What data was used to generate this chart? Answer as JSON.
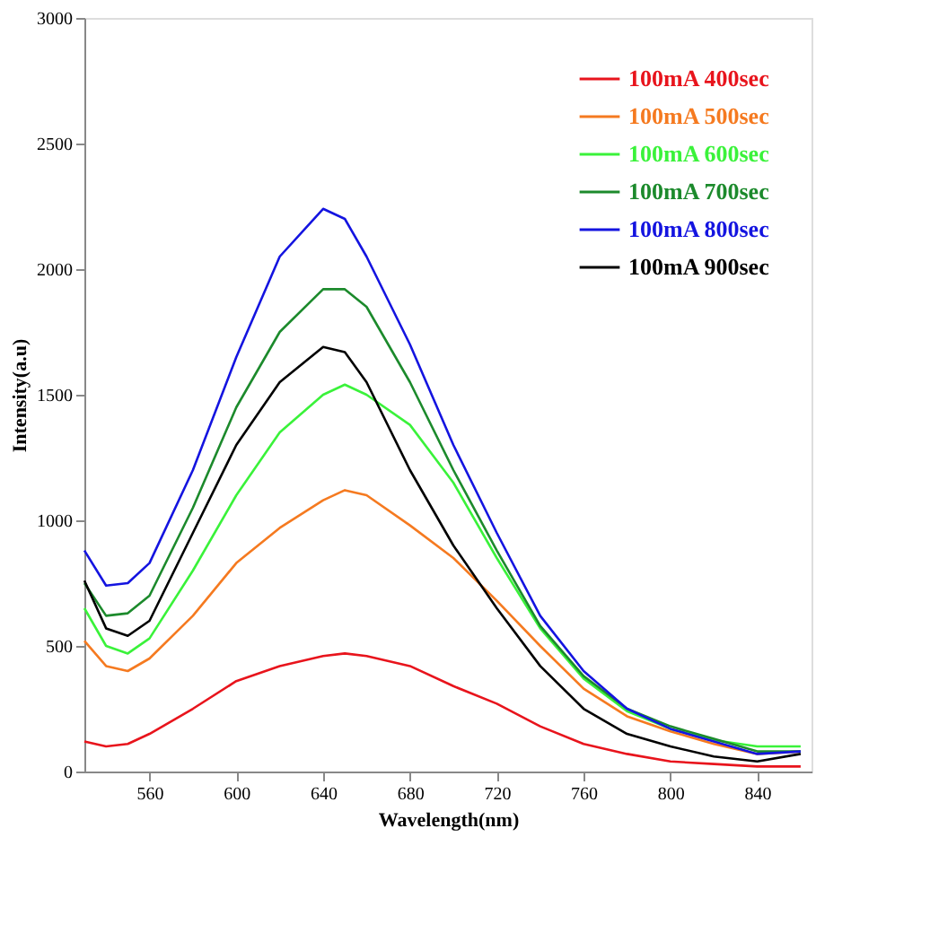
{
  "chart_data": {
    "type": "line",
    "xlabel": "Wavelength(nm)",
    "ylabel": "Intensity(a.u)",
    "x": [
      530,
      540,
      550,
      560,
      580,
      600,
      620,
      640,
      650,
      660,
      680,
      700,
      720,
      740,
      760,
      780,
      800,
      820,
      840,
      860
    ],
    "xlim": [
      530,
      865
    ],
    "xticks": [
      560,
      600,
      640,
      680,
      720,
      760,
      800,
      840
    ],
    "ylim": [
      0,
      3000
    ],
    "yticks": [
      0,
      500,
      1000,
      1500,
      2000,
      2500,
      3000
    ],
    "grid": false,
    "legend": "top right",
    "marker": "none",
    "line_style": "solid",
    "series": [
      {
        "name": "100mA 400sec",
        "color": "#e8141c",
        "values": [
          120,
          100,
          110,
          150,
          250,
          360,
          420,
          460,
          470,
          460,
          420,
          340,
          270,
          180,
          110,
          70,
          40,
          30,
          20,
          20
        ]
      },
      {
        "name": "100mA 500sec",
        "color": "#f57a20",
        "values": [
          520,
          420,
          400,
          450,
          620,
          830,
          970,
          1080,
          1120,
          1100,
          980,
          850,
          680,
          500,
          330,
          220,
          160,
          110,
          70,
          80
        ]
      },
      {
        "name": "100mA 600sec",
        "color": "#3af23a",
        "values": [
          650,
          500,
          470,
          530,
          800,
          1100,
          1350,
          1500,
          1540,
          1500,
          1380,
          1150,
          850,
          570,
          370,
          240,
          170,
          125,
          100,
          100
        ]
      },
      {
        "name": "100mA 700sec",
        "color": "#1c8a2c",
        "values": [
          750,
          620,
          630,
          700,
          1050,
          1450,
          1750,
          1920,
          1920,
          1850,
          1550,
          1200,
          880,
          580,
          380,
          250,
          180,
          130,
          80,
          80
        ]
      },
      {
        "name": "100mA 800sec",
        "color": "#1414e0",
        "values": [
          880,
          740,
          750,
          830,
          1200,
          1650,
          2050,
          2240,
          2200,
          2050,
          1700,
          1300,
          950,
          620,
          400,
          250,
          170,
          120,
          70,
          80
        ]
      },
      {
        "name": "100mA 900sec",
        "color": "#000000",
        "values": [
          760,
          570,
          540,
          600,
          950,
          1300,
          1550,
          1690,
          1670,
          1550,
          1200,
          900,
          650,
          420,
          250,
          150,
          100,
          60,
          40,
          70
        ]
      }
    ]
  }
}
